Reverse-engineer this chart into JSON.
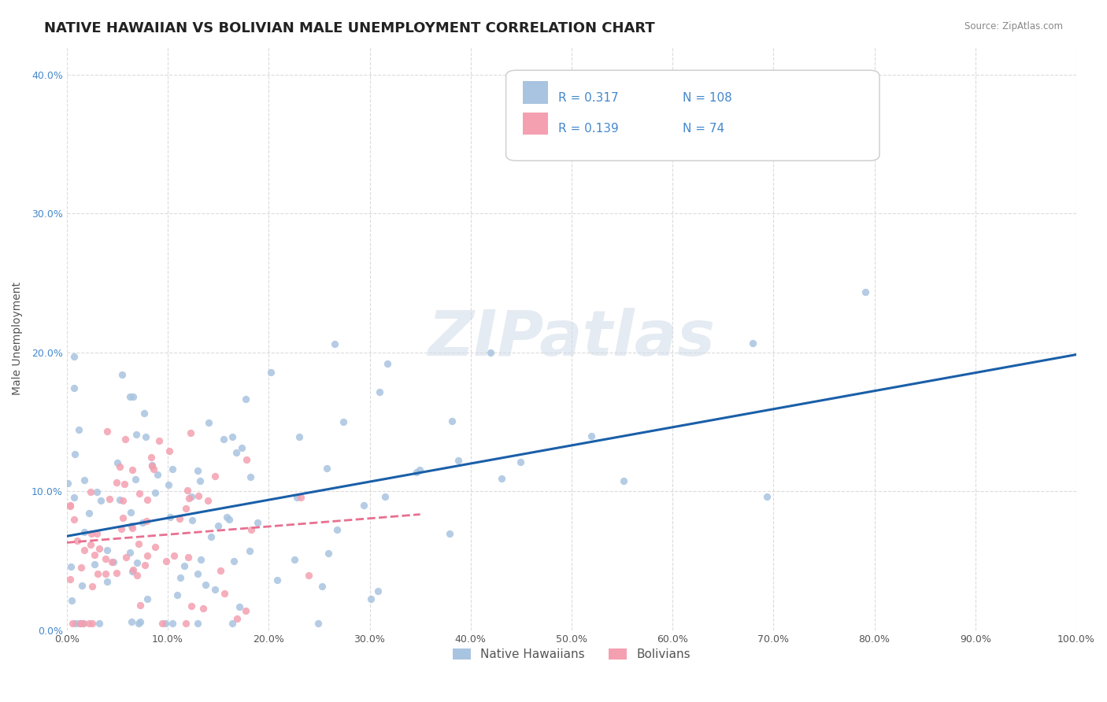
{
  "title": "NATIVE HAWAIIAN VS BOLIVIAN MALE UNEMPLOYMENT CORRELATION CHART",
  "source_text": "Source: ZipAtlas.com",
  "xlabel": "",
  "ylabel": "Male Unemployment",
  "xlim": [
    0,
    1.0
  ],
  "ylim": [
    0,
    0.42
  ],
  "xticks": [
    0.0,
    0.1,
    0.2,
    0.3,
    0.4,
    0.5,
    0.6,
    0.7,
    0.8,
    0.9,
    1.0
  ],
  "xticklabels": [
    "0.0%",
    "10.0%",
    "20.0%",
    "30.0%",
    "40.0%",
    "50.0%",
    "60.0%",
    "70.0%",
    "80.0%",
    "90.0%",
    "100.0%"
  ],
  "yticks": [
    0.0,
    0.1,
    0.2,
    0.3,
    0.4
  ],
  "yticklabels": [
    "0.0%",
    "10.0%",
    "20.0%",
    "30.0%",
    "40.0%"
  ],
  "scatter_color_nh": "#a8c4e0",
  "scatter_color_bo": "#f4a0b0",
  "trend_color_nh": "#1a5fa8",
  "trend_color_bo": "#e87090",
  "legend_text_color": "#4488cc",
  "watermark": "ZIPatlas",
  "watermark_color": "#d0dce8",
  "R_nh": 0.317,
  "N_nh": 108,
  "R_bo": 0.139,
  "N_bo": 74,
  "background_color": "#ffffff",
  "grid_color": "#cccccc",
  "title_fontsize": 13,
  "axis_label_fontsize": 10,
  "tick_fontsize": 9,
  "legend_fontsize": 11
}
